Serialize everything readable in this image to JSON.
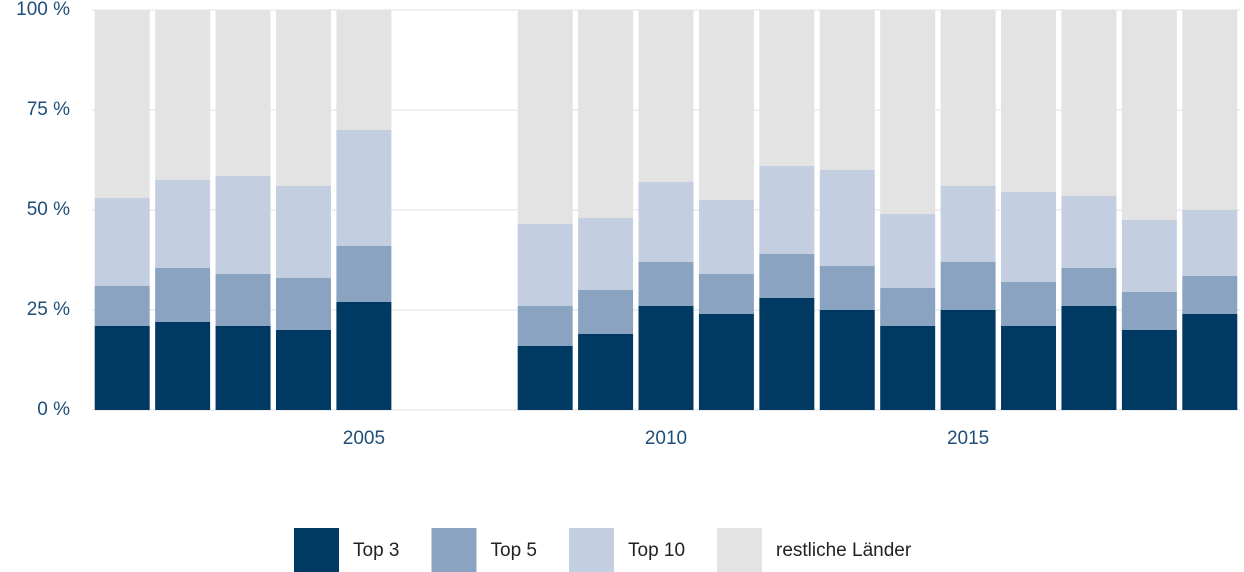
{
  "chart_data": {
    "type": "stacked_bar",
    "x": [
      2001,
      2002,
      2003,
      2004,
      2005,
      2008,
      2009,
      2010,
      2011,
      2012,
      2013,
      2014,
      2015,
      2016,
      2017,
      2018,
      2019
    ],
    "series": [
      {
        "name": "Top 3",
        "color": "#003a63",
        "values": [
          21,
          22,
          21,
          20,
          27,
          16,
          19,
          26,
          24,
          28,
          25,
          21,
          25,
          21,
          26,
          20,
          24
        ]
      },
      {
        "name": "Top 5",
        "color": "#8aa3c0",
        "values": [
          10,
          13.5,
          13,
          13,
          14,
          10,
          11,
          11,
          10,
          11,
          11,
          9.5,
          12,
          11,
          9.5,
          9.5,
          9.5
        ]
      },
      {
        "name": "Top 10",
        "color": "#c3cfe1",
        "values": [
          22,
          22,
          24.5,
          23,
          29,
          20.5,
          18,
          20,
          18.5,
          22,
          24,
          18.5,
          19,
          22.5,
          18,
          18,
          16.5
        ]
      },
      {
        "name": "restliche Länder",
        "color": "#e3e3e3",
        "values": [
          47,
          42.5,
          41.5,
          44,
          30,
          53.5,
          52,
          43,
          47.5,
          39,
          40,
          51,
          44,
          45.5,
          46.5,
          52.5,
          50
        ]
      }
    ],
    "xlim": [
      2000.5,
      2019.5
    ],
    "xticks": [
      2005,
      2010,
      2015
    ],
    "ylim": [
      0,
      100
    ],
    "yticks": [
      {
        "value": 0,
        "label": "0 %"
      },
      {
        "value": 25,
        "label": "25 %"
      },
      {
        "value": 50,
        "label": "50 %"
      },
      {
        "value": 75,
        "label": "75 %"
      },
      {
        "value": 100,
        "label": "100 %"
      }
    ],
    "grid": true,
    "legend": "bottom"
  }
}
